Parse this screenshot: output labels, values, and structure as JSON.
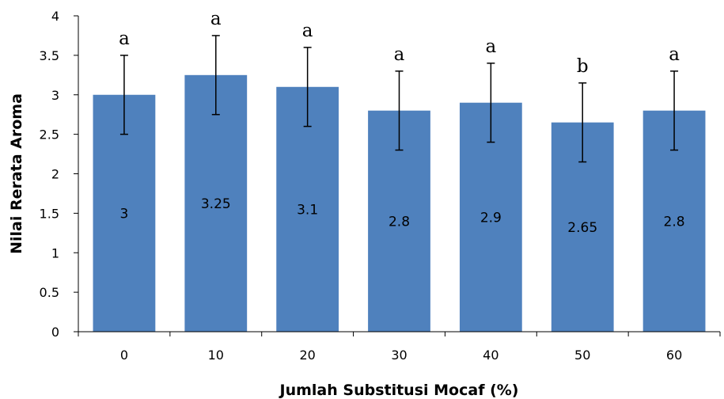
{
  "chart_data": {
    "type": "bar",
    "xlabel": "Jumlah Substitusi Mocaf (%)",
    "ylabel": "Nilai Rerata Aroma",
    "categories": [
      "0",
      "10",
      "20",
      "30",
      "40",
      "50",
      "60"
    ],
    "values": [
      3,
      3.25,
      3.1,
      2.8,
      2.9,
      2.65,
      2.8
    ],
    "value_labels": [
      "3",
      "3.25",
      "3.1",
      "2.8",
      "2.9",
      "2.65",
      "2.8"
    ],
    "error_bars": [
      0.5,
      0.5,
      0.5,
      0.5,
      0.5,
      0.5,
      0.5
    ],
    "significance_letters": [
      "a",
      "a",
      "a",
      "a",
      "a",
      "b",
      "a"
    ],
    "ylim": [
      0,
      4
    ],
    "yticks": [
      "0",
      "0.5",
      "1",
      "1.5",
      "2",
      "2.5",
      "3",
      "3.5",
      "4"
    ],
    "grid": false,
    "legend": "none",
    "colors": {
      "bar": "#4f81bd",
      "axis": "#000000",
      "error_bar": "#000000"
    }
  }
}
